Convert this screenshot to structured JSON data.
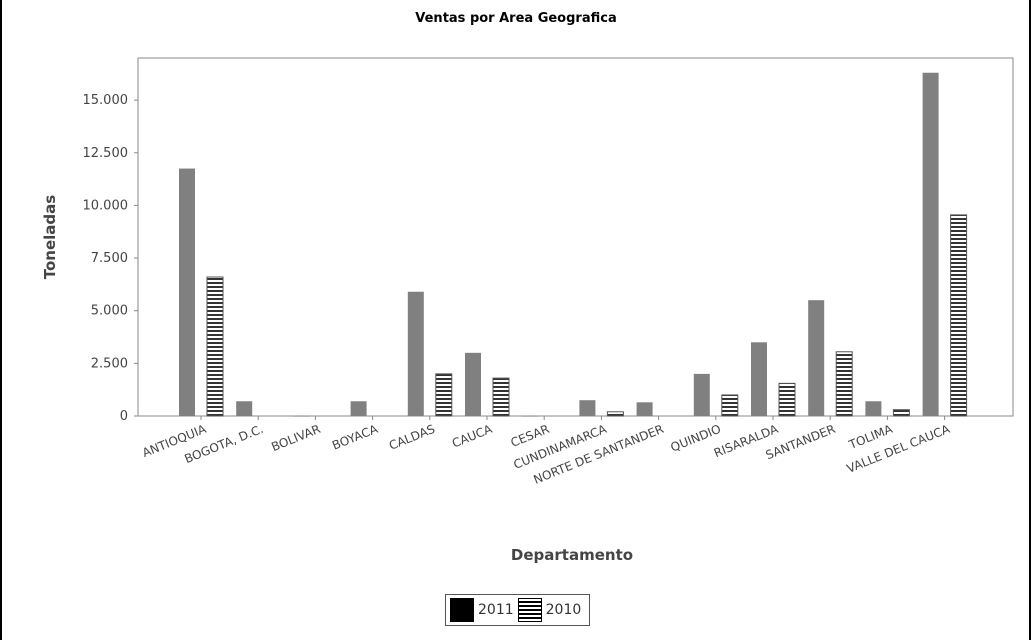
{
  "chart_data": {
    "type": "bar",
    "title": "Ventas por Area Geografica",
    "xlabel": "Departamento",
    "ylabel": "Toneladas",
    "ylim": [
      0,
      17000
    ],
    "yticks": [
      0,
      2500,
      5000,
      7500,
      10000,
      12500,
      15000
    ],
    "ytick_labels": [
      "0",
      "2.500",
      "5.000",
      "7.500",
      "10.000",
      "12.500",
      "15.000"
    ],
    "categories": [
      "ANTIOQUIA",
      "BOGOTA, D.C.",
      "BOLIVAR",
      "BOYACA",
      "CALDAS",
      "CAUCA",
      "CESAR",
      "CUNDINAMARCA",
      "NORTE DE SANTANDER",
      "QUINDIO",
      "RISARALDA",
      "SANTANDER",
      "TOLIMA",
      "VALLE DEL CAUCA"
    ],
    "series": [
      {
        "name": "2011",
        "color": "#808080",
        "pattern": "solid",
        "values": [
          11750,
          700,
          20,
          700,
          5900,
          3000,
          20,
          750,
          650,
          2000,
          3500,
          5500,
          700,
          16300
        ]
      },
      {
        "name": "2010",
        "color": "#ffffff",
        "pattern": "horizontal-stripes",
        "values": [
          6600,
          0,
          0,
          0,
          2000,
          1800,
          0,
          200,
          0,
          1000,
          1550,
          3050,
          300,
          9550
        ]
      }
    ],
    "grid": false,
    "legend_position": "bottom-center"
  }
}
